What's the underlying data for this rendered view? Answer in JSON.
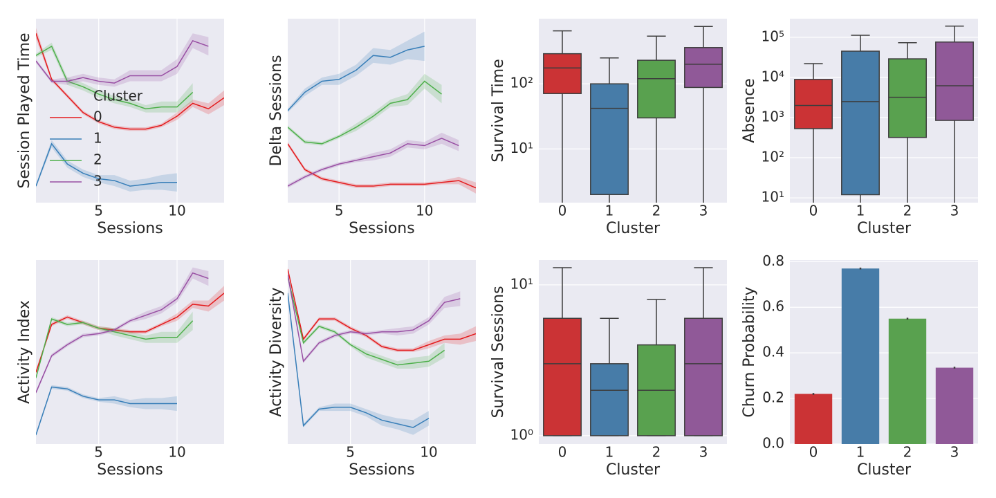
{
  "chart_data": [
    {
      "type": "line",
      "xlabel": "Sessions",
      "ylabel": "Session Played Time",
      "x": [
        1,
        2,
        3,
        4,
        5,
        6,
        7,
        8,
        9,
        10,
        11,
        12,
        13
      ],
      "xlim": [
        1,
        13
      ],
      "xticks": [
        5,
        10
      ],
      "ylim": [
        0,
        1
      ],
      "grid": true,
      "legend": "center left",
      "legend_title": "Cluster",
      "series": [
        {
          "name": "0",
          "color": "#e41a1c",
          "values": [
            0.92,
            0.67,
            0.58,
            0.49,
            0.44,
            0.41,
            0.4,
            0.4,
            0.42,
            0.47,
            0.54,
            0.51,
            0.57
          ],
          "errors": [
            0.03,
            0.01,
            0.01,
            0.01,
            0.01,
            0.01,
            0.01,
            0.01,
            0.01,
            0.02,
            0.02,
            0.03,
            0.04
          ]
        },
        {
          "name": "1",
          "color": "#377eb8",
          "values": [
            0.09,
            0.32,
            0.21,
            0.16,
            0.13,
            0.12,
            0.09,
            0.1,
            0.11,
            0.11,
            null,
            null,
            null
          ],
          "errors": [
            0.01,
            0.02,
            0.02,
            0.02,
            0.02,
            0.03,
            0.03,
            0.03,
            0.04,
            0.05,
            null,
            null,
            null
          ]
        },
        {
          "name": "2",
          "color": "#4daf4a",
          "values": [
            0.8,
            0.85,
            0.66,
            0.63,
            0.59,
            0.56,
            0.54,
            0.51,
            0.52,
            0.52,
            0.6,
            null,
            null
          ],
          "errors": [
            0.01,
            0.02,
            0.02,
            0.02,
            0.02,
            0.02,
            0.02,
            0.02,
            0.03,
            0.03,
            0.05,
            null,
            null
          ]
        },
        {
          "name": "3",
          "color": "#984ea3",
          "values": [
            0.77,
            0.66,
            0.66,
            0.68,
            0.66,
            0.65,
            0.69,
            0.69,
            0.69,
            0.74,
            0.88,
            0.85,
            null
          ],
          "errors": [
            0.01,
            0.01,
            0.02,
            0.02,
            0.02,
            0.02,
            0.03,
            0.03,
            0.03,
            0.04,
            0.04,
            0.05,
            null
          ]
        }
      ]
    },
    {
      "type": "line",
      "xlabel": "Sessions",
      "ylabel": "Delta Sessions",
      "x": [
        2,
        3,
        4,
        5,
        6,
        7,
        8,
        9,
        10,
        11,
        12,
        13
      ],
      "xlim": [
        2,
        13
      ],
      "xticks": [
        5,
        10
      ],
      "ylim": [
        0,
        1
      ],
      "grid": true,
      "series": [
        {
          "name": "0",
          "color": "#e41a1c",
          "values": [
            0.32,
            0.18,
            0.13,
            0.11,
            0.09,
            0.09,
            0.1,
            0.1,
            0.1,
            0.11,
            0.12,
            0.08
          ],
          "errors": [
            0.01,
            0.01,
            0.01,
            0.01,
            0.01,
            0.01,
            0.01,
            0.01,
            0.01,
            0.01,
            0.02,
            0.03
          ]
        },
        {
          "name": "1",
          "color": "#377eb8",
          "values": [
            0.5,
            0.6,
            0.66,
            0.67,
            0.72,
            0.8,
            0.79,
            0.83,
            0.85,
            null,
            null,
            null
          ],
          "errors": [
            0.01,
            0.02,
            0.02,
            0.03,
            0.03,
            0.04,
            0.04,
            0.05,
            0.08,
            null,
            null,
            null
          ]
        },
        {
          "name": "2",
          "color": "#4daf4a",
          "values": [
            0.41,
            0.33,
            0.32,
            0.36,
            0.41,
            0.47,
            0.54,
            0.56,
            0.66,
            0.59,
            null,
            null
          ],
          "errors": [
            0.01,
            0.01,
            0.01,
            0.01,
            0.02,
            0.02,
            0.02,
            0.03,
            0.04,
            0.05,
            null,
            null
          ]
        },
        {
          "name": "3",
          "color": "#984ea3",
          "values": [
            0.09,
            0.14,
            0.18,
            0.21,
            0.23,
            0.25,
            0.27,
            0.32,
            0.31,
            0.35,
            0.31,
            null
          ],
          "errors": [
            0.01,
            0.01,
            0.01,
            0.01,
            0.01,
            0.02,
            0.02,
            0.02,
            0.02,
            0.03,
            0.03,
            null
          ]
        }
      ]
    },
    {
      "type": "box",
      "xlabel": "Cluster",
      "ylabel": "Survival Time",
      "categories": [
        "0",
        "1",
        "2",
        "3"
      ],
      "colors": [
        "#cb3335",
        "#477ca8",
        "#59a14f",
        "#905998"
      ],
      "log": true,
      "grid": true,
      "ylim": [
        1.5,
        1000
      ],
      "yticks": [
        {
          "value": 10,
          "label": "10¹"
        },
        {
          "value": 100,
          "label": "10²"
        }
      ],
      "min": [
        1,
        1,
        1,
        1
      ],
      "q1": [
        71,
        2,
        30,
        88
      ],
      "median": [
        175,
        42,
        120,
        200
      ],
      "q3": [
        290,
        100,
        230,
        360
      ],
      "max": [
        650,
        250,
        540,
        760
      ]
    },
    {
      "type": "box",
      "xlabel": "Cluster",
      "ylabel": "Absence",
      "categories": [
        "0",
        "1",
        "2",
        "3"
      ],
      "colors": [
        "#cb3335",
        "#477ca8",
        "#59a14f",
        "#905998"
      ],
      "log": true,
      "grid": true,
      "ylim": [
        7.6,
        290000
      ],
      "yticks": [
        {
          "value": 10,
          "label": "10¹"
        },
        {
          "value": 100,
          "label": "10²"
        },
        {
          "value": 1000,
          "label": "10³"
        },
        {
          "value": 10000,
          "label": "10⁴"
        },
        {
          "value": 100000,
          "label": "10⁵"
        }
      ],
      "min": [
        1,
        1,
        1,
        1
      ],
      "q1": [
        530,
        12,
        320,
        850
      ],
      "median": [
        2000,
        2500,
        3200,
        6200
      ],
      "q3": [
        8900,
        45000,
        29000,
        76000
      ],
      "max": [
        22000,
        112000,
        73000,
        189000
      ]
    },
    {
      "type": "line",
      "xlabel": "Sessions",
      "ylabel": "Activity Index",
      "x": [
        1,
        2,
        3,
        4,
        5,
        6,
        7,
        8,
        9,
        10,
        11,
        12,
        13
      ],
      "xlim": [
        1,
        13
      ],
      "xticks": [
        5,
        10
      ],
      "ylim": [
        0,
        1
      ],
      "grid": true,
      "series": [
        {
          "name": "0",
          "color": "#e41a1c",
          "values": [
            0.39,
            0.65,
            0.69,
            0.66,
            0.63,
            0.62,
            0.61,
            0.61,
            0.65,
            0.69,
            0.76,
            0.75,
            0.82
          ],
          "errors": [
            0.01,
            0.01,
            0.01,
            0.01,
            0.01,
            0.01,
            0.01,
            0.01,
            0.01,
            0.02,
            0.02,
            0.03,
            0.04
          ]
        },
        {
          "name": "1",
          "color": "#377eb8",
          "values": [
            0.05,
            0.31,
            0.3,
            0.26,
            0.24,
            0.24,
            0.22,
            0.22,
            0.22,
            0.22,
            null,
            null,
            null
          ],
          "errors": [
            0.01,
            0.01,
            0.01,
            0.01,
            0.01,
            0.02,
            0.02,
            0.03,
            0.03,
            0.04,
            null,
            null,
            null
          ]
        },
        {
          "name": "2",
          "color": "#4daf4a",
          "values": [
            0.36,
            0.68,
            0.65,
            0.66,
            0.63,
            0.61,
            0.59,
            0.57,
            0.58,
            0.58,
            0.67,
            null,
            null
          ],
          "errors": [
            0.01,
            0.01,
            0.01,
            0.01,
            0.01,
            0.02,
            0.02,
            0.02,
            0.03,
            0.03,
            0.05,
            null,
            null
          ]
        },
        {
          "name": "3",
          "color": "#984ea3",
          "values": [
            0.28,
            0.48,
            0.54,
            0.59,
            0.6,
            0.62,
            0.67,
            0.7,
            0.73,
            0.79,
            0.93,
            0.9,
            null
          ],
          "errors": [
            0.01,
            0.01,
            0.01,
            0.01,
            0.01,
            0.01,
            0.01,
            0.02,
            0.02,
            0.02,
            0.03,
            0.04,
            null
          ]
        }
      ]
    },
    {
      "type": "line",
      "xlabel": "Sessions",
      "ylabel": "Activity Diversity",
      "x": [
        1,
        2,
        3,
        4,
        5,
        6,
        7,
        8,
        9,
        10,
        11,
        12,
        13
      ],
      "xlim": [
        1,
        13
      ],
      "xticks": [
        5,
        10
      ],
      "ylim": [
        0,
        1
      ],
      "grid": true,
      "series": [
        {
          "name": "0",
          "color": "#e41a1c",
          "values": [
            0.95,
            0.57,
            0.68,
            0.68,
            0.63,
            0.59,
            0.53,
            0.51,
            0.51,
            0.54,
            0.57,
            0.57,
            0.6
          ],
          "errors": [
            0.01,
            0.01,
            0.01,
            0.01,
            0.01,
            0.01,
            0.01,
            0.01,
            0.01,
            0.02,
            0.02,
            0.03,
            0.04
          ]
        },
        {
          "name": "1",
          "color": "#377eb8",
          "values": [
            0.82,
            0.1,
            0.19,
            0.2,
            0.2,
            0.17,
            0.13,
            0.11,
            0.09,
            0.14,
            null,
            null,
            null
          ],
          "errors": [
            0.02,
            0.01,
            0.01,
            0.02,
            0.02,
            0.02,
            0.03,
            0.03,
            0.04,
            0.04,
            null,
            null,
            null
          ]
        },
        {
          "name": "2",
          "color": "#4daf4a",
          "values": [
            0.91,
            0.55,
            0.64,
            0.61,
            0.54,
            0.49,
            0.46,
            0.43,
            0.44,
            0.45,
            0.51,
            null,
            null
          ],
          "errors": [
            0.01,
            0.01,
            0.01,
            0.01,
            0.01,
            0.02,
            0.02,
            0.02,
            0.03,
            0.03,
            0.04,
            null,
            null
          ]
        },
        {
          "name": "3",
          "color": "#984ea3",
          "values": [
            0.92,
            0.45,
            0.55,
            0.59,
            0.61,
            0.6,
            0.61,
            0.61,
            0.62,
            0.67,
            0.77,
            0.79,
            null
          ],
          "errors": [
            0.01,
            0.01,
            0.01,
            0.01,
            0.01,
            0.01,
            0.01,
            0.02,
            0.02,
            0.02,
            0.03,
            0.04,
            null
          ]
        }
      ]
    },
    {
      "type": "box",
      "xlabel": "Cluster",
      "ylabel": "Survival Sessions",
      "categories": [
        "0",
        "1",
        "2",
        "3"
      ],
      "colors": [
        "#cb3335",
        "#477ca8",
        "#59a14f",
        "#905998"
      ],
      "log": true,
      "grid": true,
      "ylim": [
        0.88,
        14.6
      ],
      "yticks": [
        {
          "value": 1,
          "label": "10⁰"
        },
        {
          "value": 10,
          "label": "10¹"
        }
      ],
      "min": [
        1,
        1,
        1,
        1
      ],
      "q1": [
        1,
        1,
        1,
        1
      ],
      "median": [
        3,
        2,
        2,
        3
      ],
      "q3": [
        6,
        3,
        4,
        6
      ],
      "max": [
        13,
        6,
        8,
        13
      ]
    },
    {
      "type": "bar",
      "xlabel": "Cluster",
      "ylabel": "Churn Probability",
      "categories": [
        "0",
        "1",
        "2",
        "3"
      ],
      "colors": [
        "#cb3335",
        "#477ca8",
        "#59a14f",
        "#905998"
      ],
      "grid": true,
      "ylim": [
        0,
        0.807
      ],
      "yticks": [
        {
          "value": 0,
          "label": "0.0"
        },
        0.2,
        0.4,
        0.6,
        0.8
      ],
      "values": [
        0.22,
        0.77,
        0.55,
        0.335
      ],
      "errors": [
        0.004,
        0.004,
        0.004,
        0.004
      ]
    }
  ]
}
